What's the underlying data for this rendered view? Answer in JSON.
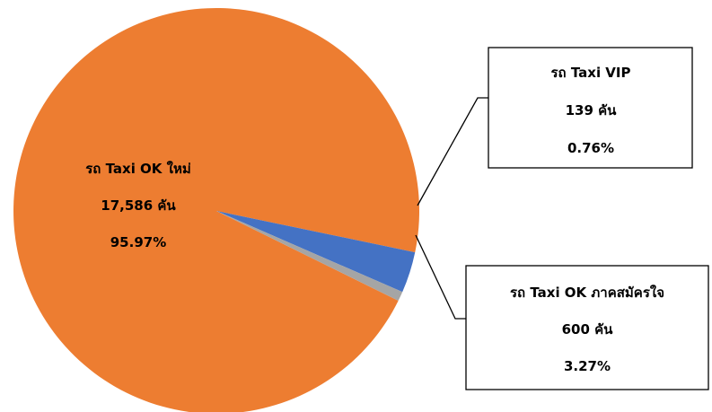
{
  "chart_data": {
    "type": "pie",
    "slices": [
      {
        "label": "รถ Taxi OK ใหม่",
        "count": "17,586 คัน",
        "percent_text": "95.97%",
        "value": 95.97,
        "color": "#ED7D31"
      },
      {
        "label": "รถ Taxi OK ภาคสมัครใจ",
        "count": "600 คัน",
        "percent_text": "3.27%",
        "value": 3.27,
        "color": "#4472C4"
      },
      {
        "label": "รถ Taxi VIP",
        "count": "139 คัน",
        "percent_text": "0.76%",
        "value": 0.76,
        "color": "#A5A5A5"
      }
    ],
    "legend": "none",
    "labels": "data-callouts"
  }
}
